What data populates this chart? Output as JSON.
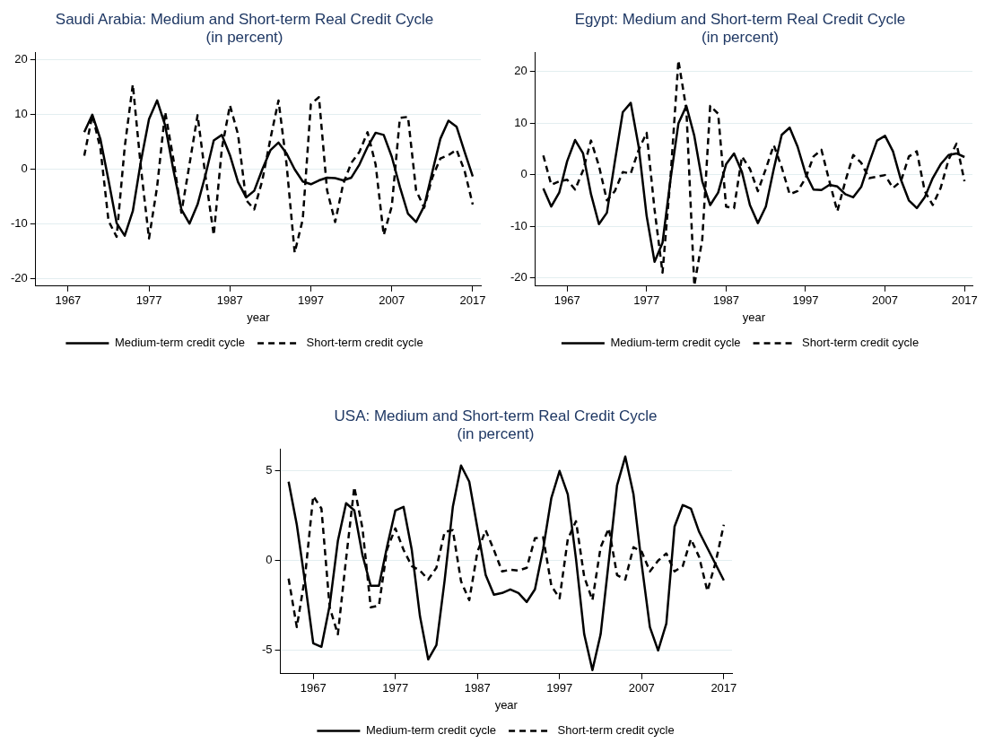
{
  "chart_data": [
    {
      "type": "line",
      "title": "Saudi Arabia: Medium and Short-term Real Credit Cycle",
      "subtitle": "(in percent)",
      "xlabel": "year",
      "grid": "y",
      "legend": "bottom",
      "xlim": [
        1963,
        2018
      ],
      "xticks": [
        1967,
        1977,
        1987,
        1997,
        2007,
        2017
      ],
      "ylim": [
        -21.3,
        21.3
      ],
      "yticks": [
        -20,
        -10,
        0,
        10,
        20
      ],
      "x": [
        1969,
        1970,
        1971,
        1972,
        1973,
        1974,
        1975,
        1976,
        1977,
        1978,
        1979,
        1980,
        1981,
        1982,
        1983,
        1984,
        1985,
        1986,
        1987,
        1988,
        1989,
        1990,
        1991,
        1992,
        1993,
        1994,
        1995,
        1996,
        1997,
        1998,
        1999,
        2000,
        2001,
        2002,
        2003,
        2004,
        2005,
        2006,
        2007,
        2008,
        2009,
        2010,
        2011,
        2012,
        2013,
        2014,
        2015,
        2016,
        2017
      ],
      "series": [
        {
          "name": "Medium-term credit cycle",
          "color": "#000000",
          "line_style": "solid",
          "values": [
            6.8,
            10,
            5.5,
            -2,
            -9.8,
            -12.1,
            -7.6,
            1.5,
            9.2,
            12.6,
            8,
            0,
            -7.3,
            -9.9,
            -6.4,
            -0.9,
            5.3,
            6.3,
            2.6,
            -2.3,
            -5.1,
            -3.9,
            0,
            3.5,
            4.9,
            2.9,
            0,
            -2.2,
            -2.7,
            -2,
            -1.5,
            -1.6,
            -2,
            -1.5,
            0.9,
            4.1,
            6.7,
            6.3,
            2.3,
            -3.2,
            -8.1,
            -9.6,
            -6.7,
            -0.5,
            5.6,
            8.9,
            7.8,
            3.2,
            -1.3
          ]
        },
        {
          "name": "Short-term credit cycle",
          "color": "#000000",
          "line_style": "dashed",
          "values": [
            2.5,
            9.9,
            3.8,
            -9.4,
            -12.3,
            4.1,
            15.5,
            0.3,
            -12.6,
            -3.2,
            10.5,
            2,
            -7.9,
            0.9,
            9.9,
            -1.5,
            -12,
            3.8,
            11.7,
            6.4,
            -5.6,
            -7.3,
            -2,
            5.6,
            12.6,
            0.9,
            -15.2,
            -9.1,
            11.9,
            13.2,
            -3.8,
            -9.6,
            -2.6,
            1.2,
            3.2,
            6.8,
            0.9,
            -12,
            -6.7,
            9.4,
            9.6,
            -3.8,
            -7,
            -1.5,
            2,
            2.6,
            3.6,
            -0.3,
            -6.4
          ]
        }
      ]
    },
    {
      "type": "line",
      "title": "Egypt: Medium and Short-term Real Credit Cycle",
      "subtitle": "(in percent)",
      "xlabel": "year",
      "grid": "y",
      "legend": "bottom",
      "xlim": [
        1963,
        2018
      ],
      "xticks": [
        1967,
        1977,
        1987,
        1997,
        2007,
        2017
      ],
      "ylim": [
        -21.6,
        23.6
      ],
      "yticks": [
        -20,
        -10,
        0,
        10,
        20
      ],
      "x": [
        1964,
        1965,
        1966,
        1967,
        1968,
        1969,
        1970,
        1971,
        1972,
        1973,
        1974,
        1975,
        1976,
        1977,
        1978,
        1979,
        1980,
        1981,
        1982,
        1983,
        1984,
        1985,
        1986,
        1987,
        1988,
        1989,
        1990,
        1991,
        1992,
        1993,
        1994,
        1995,
        1996,
        1997,
        1998,
        1999,
        2000,
        2001,
        2002,
        2003,
        2004,
        2005,
        2006,
        2007,
        2008,
        2009,
        2010,
        2011,
        2012,
        2013,
        2014,
        2015,
        2016,
        2017
      ],
      "series": [
        {
          "name": "Medium-term credit cycle",
          "color": "#000000",
          "line_style": "solid",
          "values": [
            -2.7,
            -6.2,
            -3.5,
            2.6,
            6.7,
            4.1,
            -3.8,
            -9.6,
            -7.4,
            2.5,
            12.1,
            13.9,
            5.4,
            -8,
            -16.9,
            -13.2,
            -1,
            9.9,
            13.3,
            7.5,
            -1.3,
            -5.9,
            -3.5,
            2,
            4.1,
            0.5,
            -5.9,
            -9.4,
            -6.2,
            1.1,
            7.7,
            9.1,
            5.4,
            0.2,
            -2.9,
            -3,
            -2,
            -2.3,
            -3.8,
            -4.4,
            -2.4,
            2.3,
            6.6,
            7.5,
            4.5,
            -1,
            -5,
            -6.5,
            -4.4,
            -0.7,
            2,
            3.8,
            4.1,
            3.4
          ]
        },
        {
          "name": "Short-term credit cycle",
          "color": "#000000",
          "line_style": "dashed",
          "values": [
            3.7,
            -2,
            -1.3,
            -1,
            -2.9,
            0.8,
            6.6,
            1.7,
            -5,
            -3.2,
            0.5,
            0.2,
            4.8,
            8.1,
            -6.8,
            -19,
            -0.7,
            22.1,
            12.7,
            -21.5,
            -12.6,
            13.3,
            11.8,
            -6.2,
            -6.5,
            3.5,
            1.1,
            -3.2,
            1.1,
            5.7,
            1.4,
            -3.8,
            -3.2,
            -0.7,
            3.5,
            4.8,
            -1.3,
            -7.1,
            -1.3,
            3.8,
            2.3,
            -0.7,
            -0.4,
            -0.1,
            -2.6,
            -1.3,
            3.5,
            4.5,
            -3.2,
            -5.9,
            -2.6,
            2.9,
            6,
            -1.3
          ]
        }
      ]
    },
    {
      "type": "line",
      "title": "USA: Medium and Short-term Real Credit Cycle",
      "subtitle": "(in percent)",
      "xlabel": "year",
      "grid": "y",
      "legend": "bottom",
      "xlim": [
        1963,
        2018
      ],
      "xticks": [
        1967,
        1977,
        1987,
        1997,
        2007,
        2017
      ],
      "ylim": [
        -6.3,
        6.2
      ],
      "yticks": [
        -5,
        0,
        5
      ],
      "x": [
        1964,
        1965,
        1966,
        1967,
        1968,
        1969,
        1970,
        1971,
        1972,
        1973,
        1974,
        1975,
        1976,
        1977,
        1978,
        1979,
        1980,
        1981,
        1982,
        1983,
        1984,
        1985,
        1986,
        1987,
        1988,
        1989,
        1990,
        1991,
        1992,
        1993,
        1994,
        1995,
        1996,
        1997,
        1998,
        1999,
        2000,
        2001,
        2002,
        2003,
        2004,
        2005,
        2006,
        2007,
        2008,
        2009,
        2010,
        2011,
        2012,
        2013,
        2014,
        2015,
        2016,
        2017
      ],
      "series": [
        {
          "name": "Medium-term credit cycle",
          "color": "#000000",
          "line_style": "solid",
          "values": [
            4.4,
            2,
            -1.2,
            -4.6,
            -4.8,
            -2.5,
            1.1,
            3.2,
            2.8,
            0.3,
            -1.4,
            -1.4,
            0.8,
            2.8,
            3,
            0.6,
            -3.1,
            -5.5,
            -4.7,
            -1.1,
            3,
            5.3,
            4.4,
            1.8,
            -0.8,
            -1.9,
            -1.8,
            -1.6,
            -1.8,
            -2.3,
            -1.6,
            0.65,
            3.5,
            5,
            3.7,
            0.1,
            -4.1,
            -6.1,
            -4.1,
            0,
            4.2,
            5.8,
            3.7,
            -0.2,
            -3.7,
            -5,
            -3.5,
            1.9,
            3.1,
            2.9,
            1.6,
            0.7,
            -0.2,
            -1.1
          ]
        },
        {
          "name": "Short-term credit cycle",
          "color": "#000000",
          "line_style": "dashed",
          "values": [
            -1,
            -3.7,
            -0.9,
            3.6,
            2.9,
            -2.6,
            -4.1,
            0.1,
            4.1,
            1.8,
            -2.6,
            -2.5,
            0.65,
            1.8,
            0.6,
            -0.3,
            -0.55,
            -1.05,
            -0.4,
            1.6,
            1.7,
            -1.15,
            -2.2,
            0.5,
            1.7,
            0.6,
            -0.6,
            -0.5,
            -0.55,
            -0.4,
            1.25,
            1.3,
            -1.4,
            -2.1,
            1.2,
            2.2,
            -0.9,
            -2.2,
            0.75,
            1.8,
            -0.8,
            -1.05,
            0.75,
            0.5,
            -0.6,
            0,
            0.4,
            -0.6,
            -0.3,
            1.2,
            0.2,
            -1.7,
            -0.1,
            2
          ]
        }
      ]
    }
  ]
}
